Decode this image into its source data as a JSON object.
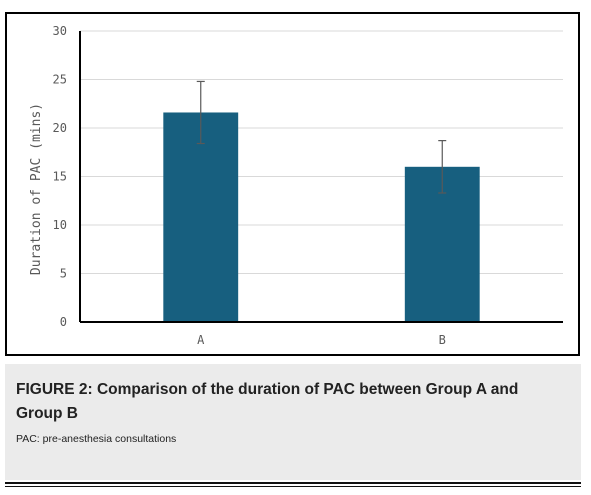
{
  "chart_data": {
    "type": "bar",
    "title": "",
    "xlabel": "",
    "ylabel": "Duration of PAC (mins)",
    "categories": [
      "A",
      "B"
    ],
    "values": [
      21.6,
      16.0
    ],
    "error_upper": [
      24.8,
      18.7
    ],
    "error_lower": [
      18.4,
      13.3
    ],
    "ylim": [
      0,
      30
    ],
    "yticks": [
      0,
      5,
      10,
      15,
      20,
      25,
      30
    ],
    "grid": true,
    "legend": "none",
    "bar_color": "#175f7f",
    "grid_color": "#d9d9d9",
    "error_bar_color": "#595959"
  },
  "caption": {
    "title": "FIGURE 2: Comparison of the duration of PAC between Group A and Group B",
    "note": "PAC: pre-anesthesia consultations"
  }
}
